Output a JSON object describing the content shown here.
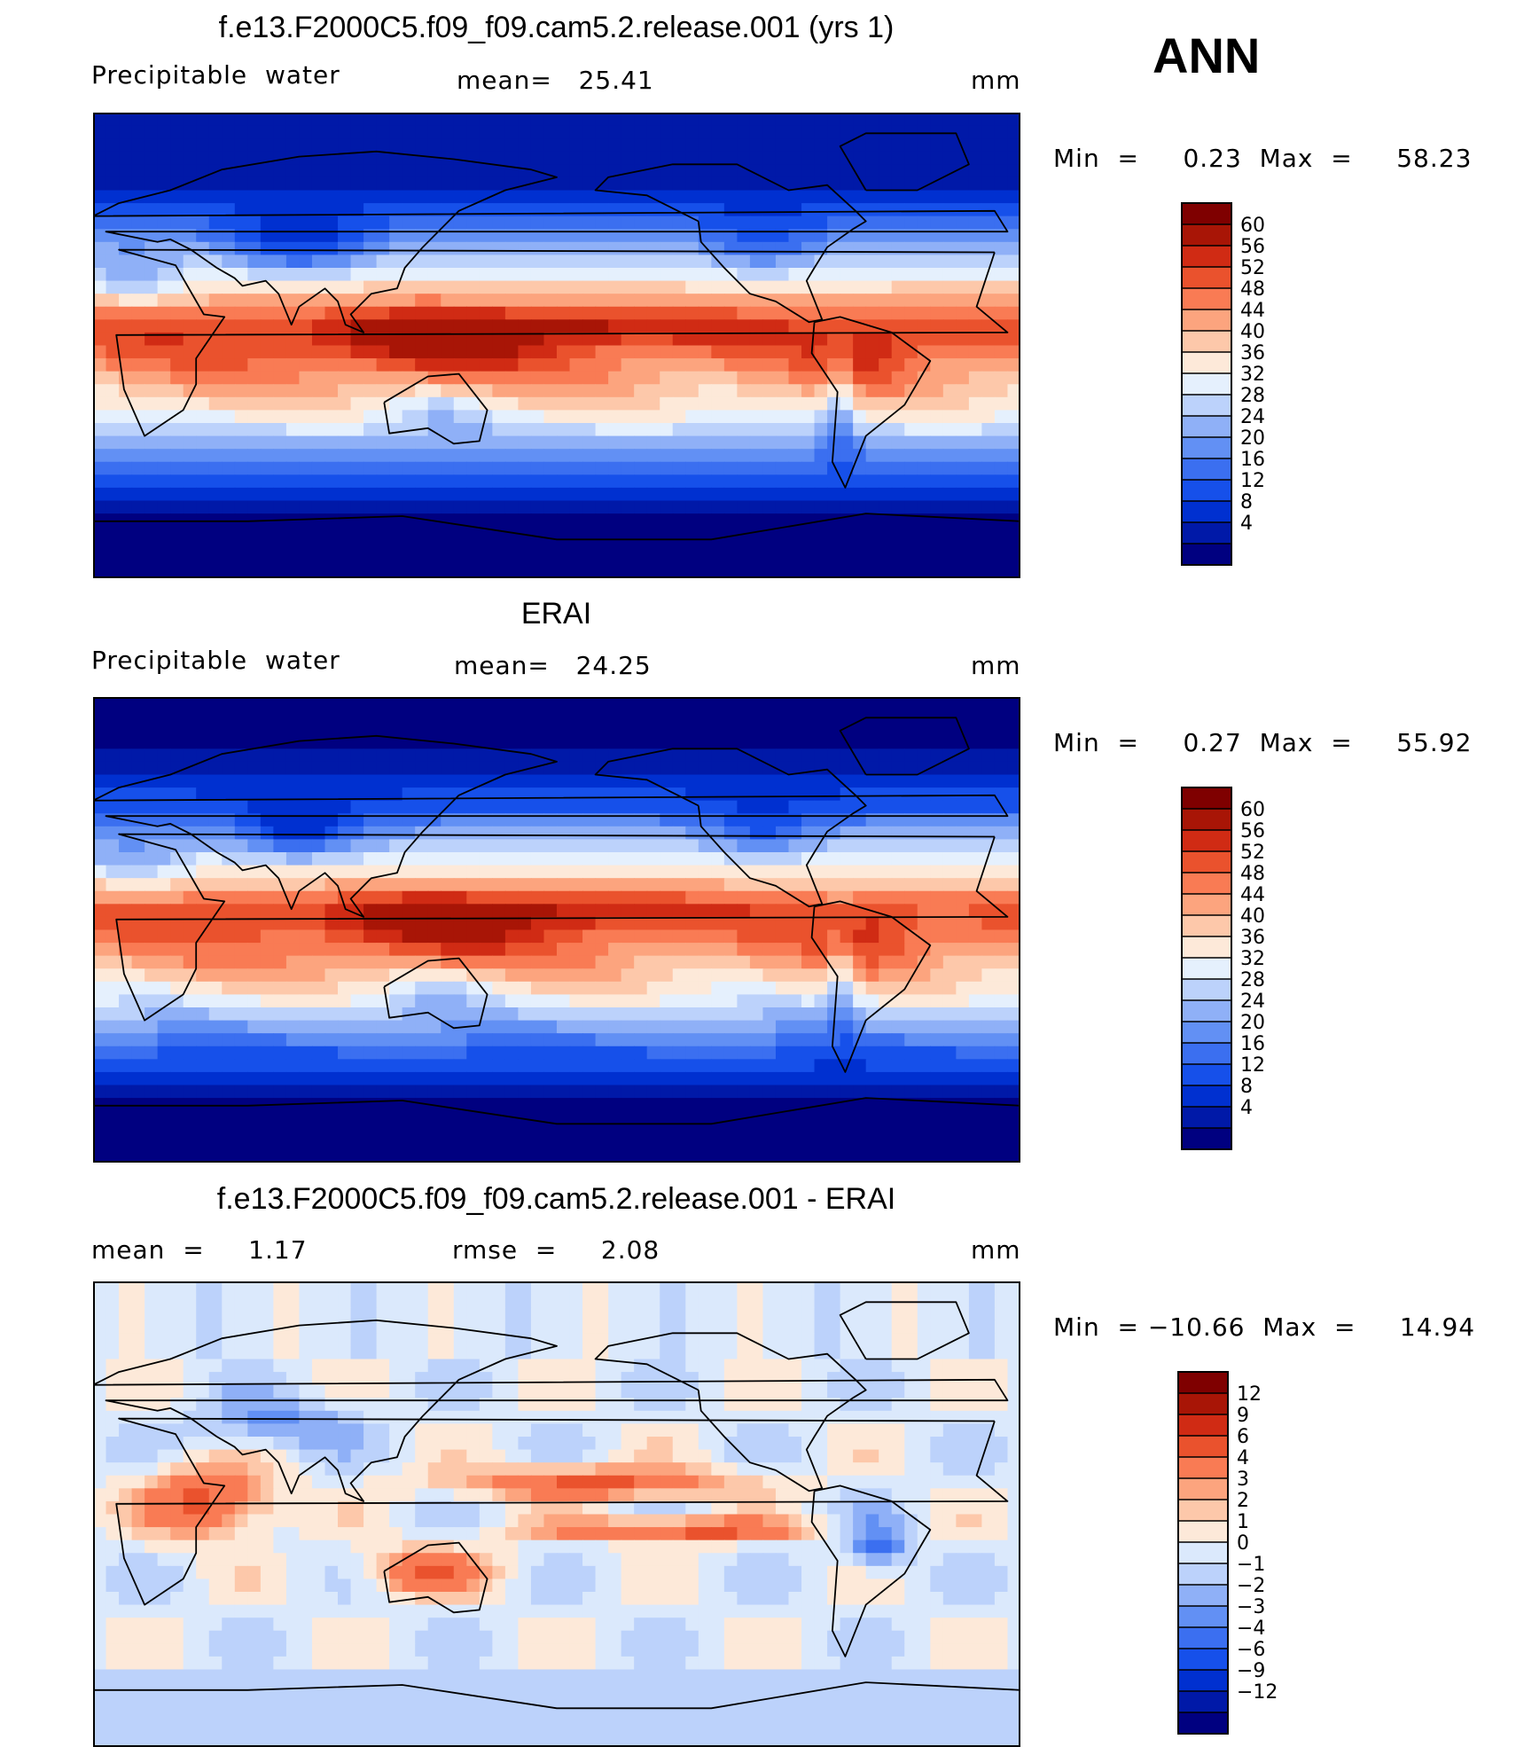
{
  "season": "ANN",
  "colors": {
    "abs_scale": [
      "#000080",
      "#0019a8",
      "#0030d0",
      "#1650ea",
      "#3b6ff0",
      "#6290f4",
      "#8fb0f7",
      "#bcd2fb",
      "#e5f0fd",
      "#fde9d9",
      "#fdc8aa",
      "#fca47e",
      "#f97b54",
      "#ea522d",
      "#d02b14",
      "#a81506",
      "#7f0000"
    ],
    "diff_scale": [
      "#000080",
      "#0019a8",
      "#0030d0",
      "#1650ea",
      "#3b6ff0",
      "#6290f4",
      "#8fb0f7",
      "#bcd2fb",
      "#dbe9fc",
      "#fde9d9",
      "#fdc8aa",
      "#fca47e",
      "#f97b54",
      "#ea522d",
      "#d02b14",
      "#a81506",
      "#7f0000"
    ]
  },
  "panels": [
    {
      "id": "model",
      "title": "f.e13.F2000C5.f09_f09.cam5.2.release.001 (yrs 1)",
      "left_label": "Precipitable  water",
      "center_label": "mean=   25.41",
      "units": "mm",
      "minmax": "Min  =     0.23  Max  =     58.23",
      "scale": "abs_scale"
    },
    {
      "id": "obs",
      "title": "ERAI",
      "left_label": "Precipitable  water",
      "center_label": "mean=   24.25",
      "units": "mm",
      "minmax": "Min  =     0.27  Max  =     55.92",
      "scale": "abs_scale"
    },
    {
      "id": "diff",
      "title": "f.e13.F2000C5.f09_f09.cam5.2.release.001 - ERAI",
      "left_label": "mean  =     1.17",
      "center_label": "rmse  =     2.08",
      "units": "mm",
      "minmax": "Min  = −10.66  Max  =     14.94",
      "scale": "diff_scale"
    }
  ],
  "chart_data": [
    {
      "type": "heatmap",
      "title": "f.e13.F2000C5.f09_f09.cam5.2.release.001 (yrs 1)",
      "variable": "Precipitable water",
      "units": "mm",
      "mean": 25.41,
      "min": 0.23,
      "max": 58.23,
      "colorbar_levels": [
        "60",
        "56",
        "52",
        "48",
        "44",
        "40",
        "36",
        "32",
        "28",
        "24",
        "20",
        "16",
        "12",
        "8",
        "4"
      ],
      "projection": "cylindrical equidistant, centered on 180°"
    },
    {
      "type": "heatmap",
      "title": "ERAI",
      "variable": "Precipitable water",
      "units": "mm",
      "mean": 24.25,
      "min": 0.27,
      "max": 55.92,
      "colorbar_levels": [
        "60",
        "56",
        "52",
        "48",
        "44",
        "40",
        "36",
        "32",
        "28",
        "24",
        "20",
        "16",
        "12",
        "8",
        "4"
      ],
      "projection": "cylindrical equidistant, centered on 180°"
    },
    {
      "type": "heatmap",
      "title": "f.e13.F2000C5.f09_f09.cam5.2.release.001 - ERAI",
      "units": "mm",
      "mean": 1.17,
      "rmse": 2.08,
      "min": -10.66,
      "max": 14.94,
      "colorbar_levels": [
        "12",
        "9",
        "6",
        "4",
        "3",
        "2",
        "1",
        "0",
        "−1",
        "−2",
        "−3",
        "−4",
        "−6",
        "−9",
        "−12"
      ],
      "projection": "cylindrical equidistant, centered on 180°"
    }
  ]
}
